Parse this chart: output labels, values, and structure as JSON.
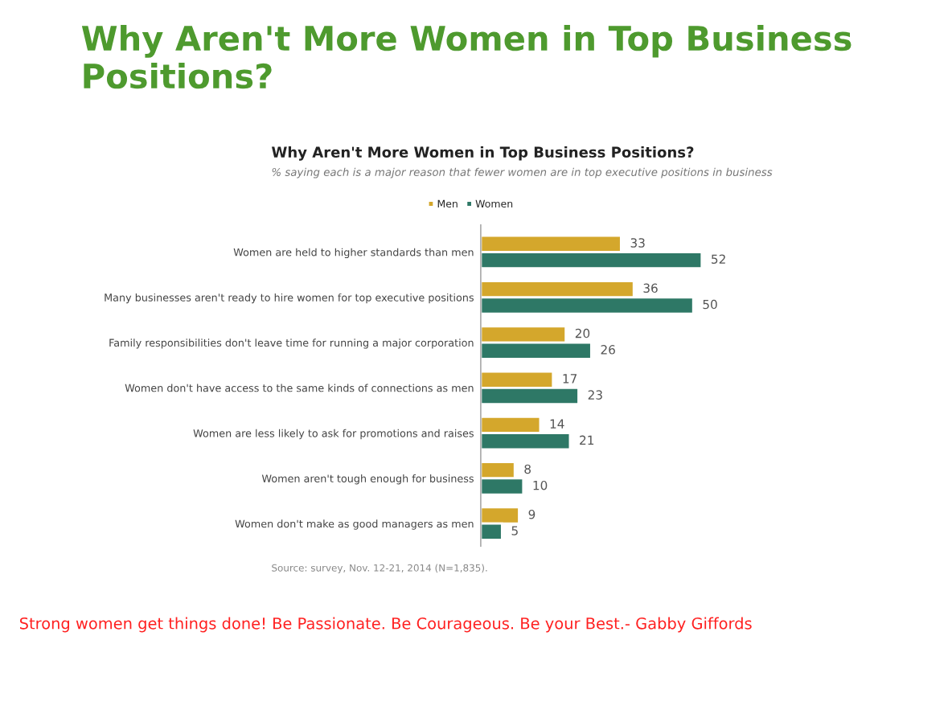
{
  "chart_data": {
    "type": "bar",
    "orientation": "horizontal",
    "title": "Why Aren't More Women in Top Business Positions?",
    "subtitle": "Why Aren't More Women in Top Business Positions?",
    "categories": [
      "Women are held to higher standards than men",
      "Many businesses aren't ready to hire women for top executive positions",
      "Family responsibilities don't leave time for running a major corporation",
      "Women don't have access to the same kinds of connections as men",
      "Women are less likely to ask for promotions and raises",
      "Women aren't tough enough for business",
      "Women don't make as good managers as men"
    ],
    "series": [
      {
        "name": "Men",
        "color": "#d4a72c",
        "values": [
          33,
          36,
          20,
          17,
          14,
          8,
          9
        ]
      },
      {
        "name": "Women",
        "color": "#2e7866",
        "values": [
          52,
          50,
          26,
          23,
          21,
          10,
          5
        ]
      }
    ],
    "data_labels": true,
    "legend": "top",
    "grid": false,
    "annotations": [
      "% saying each is a major reason that fewer women are in top executive positions in business",
      "Source: survey, Nov. 12-21, 2014 (N=1,835).",
      "Strong women get things done! Be Passionate. Be Courageous. Be your Best.- Gabby Giffords"
    ]
  }
}
